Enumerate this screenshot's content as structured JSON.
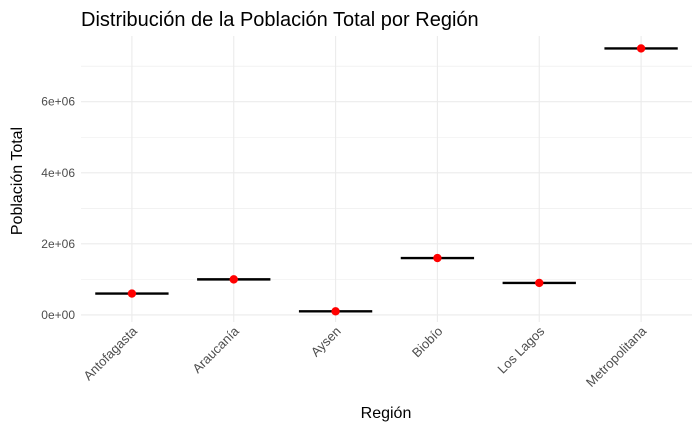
{
  "chart_data": {
    "type": "boxplot",
    "title": "Distribución de la Población Total por Región",
    "xlabel": "Región",
    "ylabel": "Población Total",
    "categories": [
      "Antofagasta",
      "Araucanía",
      "Aysen",
      "Biobío",
      "Los Lagos",
      "Metropolitana"
    ],
    "values": [
      600000,
      1000000,
      100000,
      1600000,
      900000,
      7500000
    ],
    "yticks": [
      0,
      2000000,
      4000000,
      6000000
    ],
    "ytick_labels": [
      "0e+00",
      "2e+06",
      "4e+06",
      "6e+06"
    ],
    "ylim": [
      -200000,
      7850000
    ],
    "grid": true,
    "legend": "none",
    "colors": {
      "median_line": "#000000",
      "point": "#ff0000",
      "grid": "#ebebeb",
      "text": "#4d4d4d",
      "title": "#000000"
    }
  }
}
